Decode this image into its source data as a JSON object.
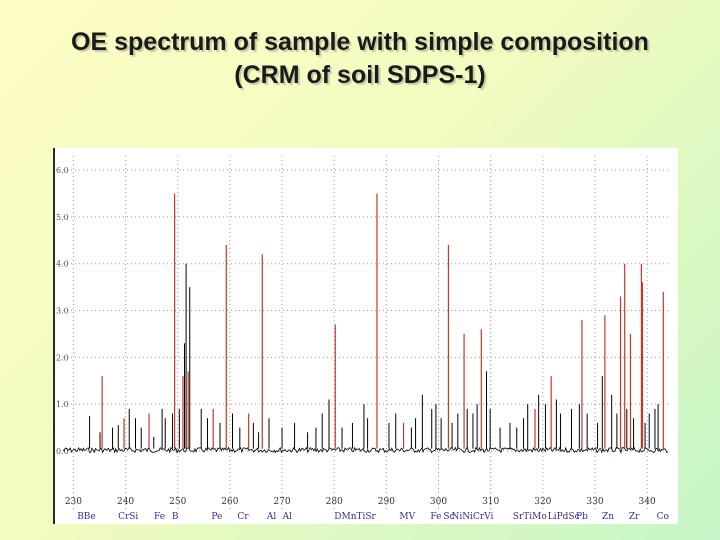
{
  "title": {
    "line1": "OE spectrum of sample with simple composition",
    "line2": "(CRM of soil SDPS-1)"
  },
  "colors": {
    "reference_line": "#c0392b",
    "spectrum": "#000000",
    "grid": "#9a9a9a",
    "element_labels": "#3a2a9c",
    "background_top": "#fdfdc4",
    "background_bottom": "#c6f6c8"
  },
  "chart_data": {
    "type": "line",
    "title": "",
    "xlabel": "",
    "ylabel": "",
    "grid": true,
    "xlim": [
      228,
      344
    ],
    "ylim": [
      0,
      6.3
    ],
    "x_ticks": [
      230,
      240,
      250,
      260,
      270,
      280,
      290,
      300,
      310,
      320,
      330,
      340
    ],
    "x_tick_labels": [
      "230",
      "240",
      "250",
      "260",
      "270",
      "280",
      "290",
      "300",
      "310",
      "320",
      "330",
      "340"
    ],
    "y_ticks": [
      0,
      1,
      2,
      3,
      4,
      5,
      6
    ],
    "y_tick_labels": [
      "0.0",
      "1.0",
      "2.0",
      "3.0",
      "4.0",
      "5.0",
      "6.0"
    ],
    "element_labels": [
      {
        "x": 232.5,
        "text": "BBe"
      },
      {
        "x": 240.5,
        "text": "CrSi"
      },
      {
        "x": 246.5,
        "text": "Fe"
      },
      {
        "x": 249.5,
        "text": "B"
      },
      {
        "x": 257.5,
        "text": "Pe"
      },
      {
        "x": 262.5,
        "text": "Cr"
      },
      {
        "x": 268,
        "text": "Al"
      },
      {
        "x": 271,
        "text": "Al"
      },
      {
        "x": 284,
        "text": "DMnTiSr"
      },
      {
        "x": 294,
        "text": "MV"
      },
      {
        "x": 299.5,
        "text": "Fe"
      },
      {
        "x": 302,
        "text": "Sc"
      },
      {
        "x": 306.5,
        "text": "NiNiCrVi"
      },
      {
        "x": 317.5,
        "text": "SrTiMo"
      },
      {
        "x": 324,
        "text": "LiPdSc"
      },
      {
        "x": 327.5,
        "text": "Pb"
      },
      {
        "x": 332.5,
        "text": "Zn"
      },
      {
        "x": 337.5,
        "text": "Zr"
      },
      {
        "x": 343,
        "text": "Co"
      }
    ],
    "series": [
      {
        "color": "#c0392b",
        "lines": [
          [
            235.5,
            1.6
          ],
          [
            239.7,
            0.7
          ],
          [
            244.5,
            0.8
          ],
          [
            249.4,
            5.5
          ],
          [
            251.0,
            1.6
          ],
          [
            252.0,
            1.7
          ],
          [
            256.8,
            0.9
          ],
          [
            259.3,
            4.4
          ],
          [
            263.6,
            0.8
          ],
          [
            266.2,
            4.2
          ],
          [
            280.2,
            2.7
          ],
          [
            288.2,
            5.5
          ],
          [
            293.3,
            0.6
          ],
          [
            301.9,
            4.4
          ],
          [
            304.9,
            2.5
          ],
          [
            308.2,
            2.6
          ],
          [
            318.5,
            0.9
          ],
          [
            321.6,
            1.6
          ],
          [
            327.5,
            2.8
          ],
          [
            331.9,
            2.9
          ],
          [
            334.9,
            3.3
          ],
          [
            335.7,
            4.0
          ],
          [
            336.8,
            2.5
          ],
          [
            338.9,
            4.0
          ],
          [
            339.1,
            3.6
          ],
          [
            343.1,
            3.4
          ]
        ]
      },
      {
        "color": "#000000",
        "lines": [
          [
            233.1,
            0.75
          ],
          [
            235.1,
            0.4
          ],
          [
            237.5,
            0.5
          ],
          [
            238.6,
            0.55
          ],
          [
            240.7,
            0.9
          ],
          [
            241.9,
            0.7
          ],
          [
            243.0,
            0.5
          ],
          [
            245.4,
            0.3
          ],
          [
            247.0,
            0.9
          ],
          [
            247.6,
            0.7
          ],
          [
            249.0,
            0.8
          ],
          [
            250.3,
            0.9
          ],
          [
            251.6,
            4.0
          ],
          [
            251.3,
            2.3
          ],
          [
            252.3,
            3.5
          ],
          [
            254.5,
            0.9
          ],
          [
            255.7,
            0.7
          ],
          [
            258.1,
            0.6
          ],
          [
            260.5,
            0.8
          ],
          [
            261.9,
            0.5
          ],
          [
            264.5,
            0.6
          ],
          [
            265.5,
            0.4
          ],
          [
            267.5,
            0.7
          ],
          [
            270.0,
            0.5
          ],
          [
            272.4,
            0.6
          ],
          [
            274.9,
            0.4
          ],
          [
            276.5,
            0.5
          ],
          [
            277.7,
            0.8
          ],
          [
            279.0,
            1.1
          ],
          [
            281.5,
            0.5
          ],
          [
            283.5,
            0.6
          ],
          [
            285.7,
            1.0
          ],
          [
            286.4,
            0.7
          ],
          [
            290.5,
            0.6
          ],
          [
            291.8,
            0.8
          ],
          [
            294.8,
            0.5
          ],
          [
            295.6,
            0.7
          ],
          [
            296.9,
            1.2
          ],
          [
            298.7,
            0.9
          ],
          [
            299.5,
            1.0
          ],
          [
            300.5,
            0.7
          ],
          [
            302.6,
            0.6
          ],
          [
            303.7,
            0.8
          ],
          [
            305.5,
            0.9
          ],
          [
            306.6,
            0.8
          ],
          [
            307.4,
            1.0
          ],
          [
            309.2,
            1.7
          ],
          [
            309.9,
            0.9
          ],
          [
            311.8,
            0.5
          ],
          [
            313.7,
            0.6
          ],
          [
            315.0,
            0.5
          ],
          [
            316.3,
            0.7
          ],
          [
            317.1,
            1.0
          ],
          [
            319.2,
            1.2
          ],
          [
            320.5,
            1.0
          ],
          [
            322.6,
            1.1
          ],
          [
            323.4,
            0.8
          ],
          [
            325.5,
            0.9
          ],
          [
            327.0,
            1.0
          ],
          [
            328.5,
            0.8
          ],
          [
            330.5,
            0.6
          ],
          [
            331.4,
            1.6
          ],
          [
            333.2,
            1.2
          ],
          [
            334.2,
            0.8
          ],
          [
            336.1,
            0.9
          ],
          [
            337.4,
            0.7
          ],
          [
            339.6,
            0.6
          ],
          [
            340.4,
            0.8
          ],
          [
            341.5,
            0.9
          ],
          [
            342.1,
            1.0
          ]
        ]
      }
    ]
  }
}
